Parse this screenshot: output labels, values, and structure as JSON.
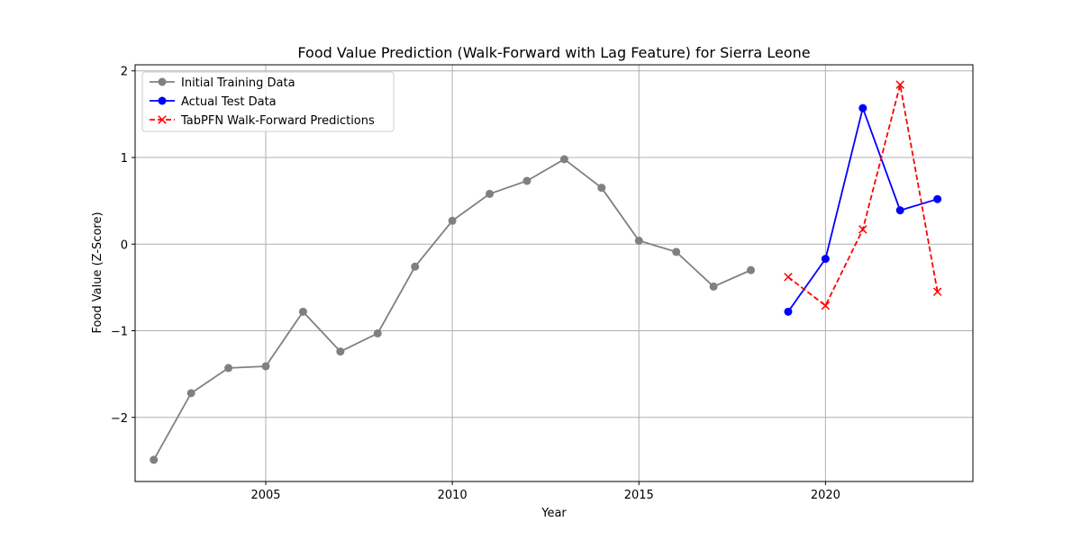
{
  "chart_data": {
    "type": "line",
    "title": "Food Value Prediction (Walk-Forward with Lag Feature) for Sierra Leone",
    "xlabel": "Year",
    "ylabel": "Food Value (Z-Score)",
    "xlim": [
      2001.5,
      2023.95
    ],
    "ylim": [
      -2.74,
      2.07
    ],
    "x_ticks": [
      2005,
      2010,
      2015,
      2020
    ],
    "y_ticks": [
      -2,
      -1,
      0,
      1,
      2
    ],
    "y_tick_labels": [
      "−2",
      "−1",
      "0",
      "1",
      "2"
    ],
    "grid": true,
    "legend_position": "top-left",
    "series": [
      {
        "name": "Initial Training Data",
        "color": "#808080",
        "marker": "circle",
        "linestyle": "solid",
        "x": [
          2002,
          2003,
          2004,
          2005,
          2006,
          2007,
          2008,
          2009,
          2010,
          2011,
          2012,
          2013,
          2014,
          2015,
          2016,
          2017,
          2018
        ],
        "y": [
          -2.49,
          -1.72,
          -1.43,
          -1.41,
          -0.78,
          -1.24,
          -1.03,
          -0.26,
          0.27,
          0.58,
          0.73,
          0.98,
          0.65,
          0.04,
          -0.09,
          -0.49,
          -0.3
        ]
      },
      {
        "name": "Actual Test Data",
        "color": "#0000ff",
        "marker": "circle",
        "linestyle": "solid",
        "x": [
          2019,
          2020,
          2021,
          2022,
          2023
        ],
        "y": [
          -0.78,
          -0.17,
          1.57,
          0.39,
          0.52
        ]
      },
      {
        "name": "TabPFN Walk-Forward Predictions",
        "color": "#ff0000",
        "marker": "x",
        "linestyle": "dashed",
        "x": [
          2019,
          2020,
          2021,
          2022,
          2023
        ],
        "y": [
          -0.38,
          -0.71,
          0.17,
          1.84,
          -0.55
        ]
      }
    ]
  }
}
